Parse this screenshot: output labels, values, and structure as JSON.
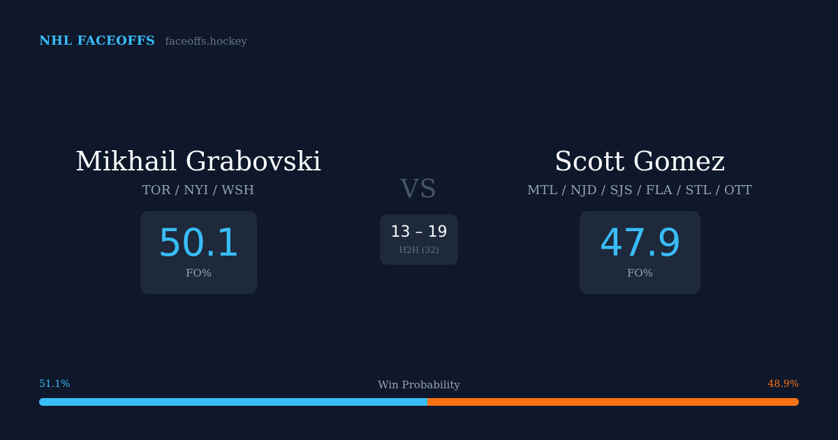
{
  "brand": {
    "name": "NHL FACEOFFS",
    "url": "faceoffs.hockey"
  },
  "player_left": {
    "name": "Mikhail Grabovski",
    "teams": "TOR / NYI / WSH",
    "fo_value": "50.1",
    "fo_label": "FO%"
  },
  "player_right": {
    "name": "Scott Gomez",
    "teams": "MTL / NJD / SJS / FLA / STL / OTT",
    "fo_value": "47.9",
    "fo_label": "FO%"
  },
  "versus": {
    "label": "VS",
    "h2h_score": "13 – 19",
    "h2h_label": "H2H (32)"
  },
  "win_probability": {
    "title": "Win Probability",
    "left_label": "51.1%",
    "right_label": "48.9%",
    "left_fraction": 0.511,
    "left_color": "#38bdf8",
    "right_color": "#f97316"
  }
}
